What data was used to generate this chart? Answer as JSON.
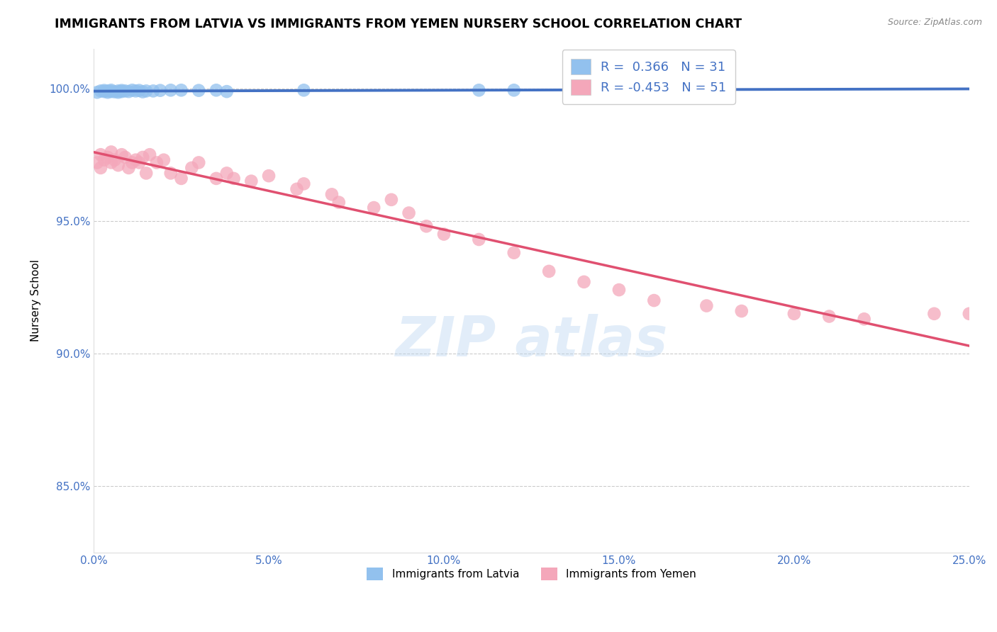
{
  "title": "IMMIGRANTS FROM LATVIA VS IMMIGRANTS FROM YEMEN NURSERY SCHOOL CORRELATION CHART",
  "source": "Source: ZipAtlas.com",
  "ylabel": "Nursery School",
  "xlim": [
    0.0,
    0.25
  ],
  "ylim": [
    0.825,
    1.015
  ],
  "xticks": [
    0.0,
    0.05,
    0.1,
    0.15,
    0.2,
    0.25
  ],
  "xticklabels": [
    "0.0%",
    "5.0%",
    "10.0%",
    "15.0%",
    "20.0%",
    "25.0%"
  ],
  "yticks": [
    0.85,
    0.9,
    0.95,
    1.0
  ],
  "yticklabels": [
    "85.0%",
    "90.0%",
    "95.0%",
    "100.0%"
  ],
  "legend_r_latvia": "0.366",
  "legend_n_latvia": "31",
  "legend_r_yemen": "-0.453",
  "legend_n_yemen": "51",
  "latvia_color": "#92C1EE",
  "yemen_color": "#F4A7BA",
  "latvia_line_color": "#4472C4",
  "yemen_line_color": "#E05070",
  "axis_color": "#4472C4",
  "grid_color": "#BEBEBE",
  "title_fontsize": 12.5,
  "label_fontsize": 11,
  "tick_fontsize": 11,
  "latvia_x": [
    0.001,
    0.002,
    0.003,
    0.003,
    0.004,
    0.004,
    0.005,
    0.005,
    0.006,
    0.007,
    0.007,
    0.008,
    0.008,
    0.009,
    0.01,
    0.011,
    0.012,
    0.013,
    0.014,
    0.015,
    0.017,
    0.019,
    0.022,
    0.025,
    0.03,
    0.035,
    0.038,
    0.06,
    0.11,
    0.12,
    0.15
  ],
  "latvia_y": [
    0.9985,
    0.999,
    0.9988,
    0.9992,
    0.9985,
    0.999,
    0.9988,
    0.9993,
    0.9987,
    0.999,
    0.9985,
    0.9992,
    0.9988,
    0.999,
    0.9988,
    0.9993,
    0.999,
    0.9992,
    0.9987,
    0.999,
    0.999,
    0.9992,
    0.9993,
    0.9993,
    0.9992,
    0.9993,
    0.9988,
    0.9993,
    0.9993,
    0.9993,
    0.9993
  ],
  "yemen_x": [
    0.001,
    0.002,
    0.002,
    0.003,
    0.004,
    0.005,
    0.005,
    0.006,
    0.007,
    0.008,
    0.009,
    0.01,
    0.011,
    0.012,
    0.013,
    0.014,
    0.015,
    0.016,
    0.018,
    0.02,
    0.022,
    0.025,
    0.028,
    0.03,
    0.035,
    0.038,
    0.04,
    0.045,
    0.05,
    0.058,
    0.06,
    0.068,
    0.07,
    0.08,
    0.085,
    0.09,
    0.095,
    0.1,
    0.11,
    0.12,
    0.13,
    0.14,
    0.15,
    0.16,
    0.175,
    0.185,
    0.2,
    0.21,
    0.22,
    0.24,
    0.25
  ],
  "yemen_y": [
    0.972,
    0.97,
    0.975,
    0.973,
    0.974,
    0.972,
    0.976,
    0.973,
    0.971,
    0.975,
    0.974,
    0.97,
    0.972,
    0.973,
    0.972,
    0.974,
    0.968,
    0.975,
    0.972,
    0.973,
    0.968,
    0.966,
    0.97,
    0.972,
    0.966,
    0.968,
    0.966,
    0.965,
    0.967,
    0.962,
    0.964,
    0.96,
    0.957,
    0.955,
    0.958,
    0.953,
    0.948,
    0.945,
    0.943,
    0.938,
    0.931,
    0.927,
    0.924,
    0.92,
    0.918,
    0.916,
    0.915,
    0.914,
    0.913,
    0.915,
    0.915
  ]
}
